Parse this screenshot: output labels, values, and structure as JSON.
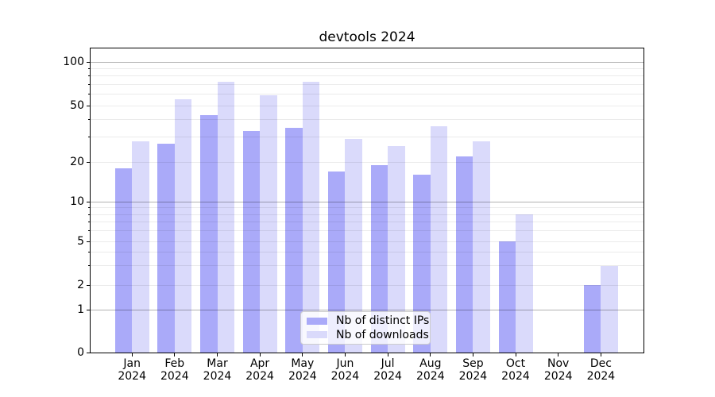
{
  "chart_data": {
    "type": "bar",
    "title": "devtools 2024",
    "x_months": [
      "Jan",
      "Feb",
      "Mar",
      "Apr",
      "May",
      "Jun",
      "Jul",
      "Aug",
      "Sep",
      "Oct",
      "Nov",
      "Dec"
    ],
    "x_year": "2024",
    "series": [
      {
        "name": "Nb of distinct IPs",
        "color": "#aaaaf9",
        "values": [
          18,
          27,
          43,
          33,
          35,
          17,
          19,
          16,
          22,
          5,
          0,
          2
        ]
      },
      {
        "name": "Nb of downloads",
        "color": "#dadafb",
        "values": [
          28,
          55,
          73,
          59,
          73,
          29,
          26,
          36,
          28,
          8,
          0,
          3
        ]
      }
    ],
    "yscale": "asinh",
    "ytick_labels": [
      0,
      1,
      2,
      5,
      10,
      20,
      50,
      100
    ],
    "ymajor_gridlines": [
      1,
      10,
      100
    ],
    "yminor_gridlines": [
      2,
      3,
      4,
      5,
      6,
      7,
      8,
      9,
      20,
      30,
      40,
      50,
      60,
      70,
      80,
      90
    ],
    "ylim": [
      0,
      126
    ],
    "grid": true,
    "legend_position": "lower center"
  }
}
